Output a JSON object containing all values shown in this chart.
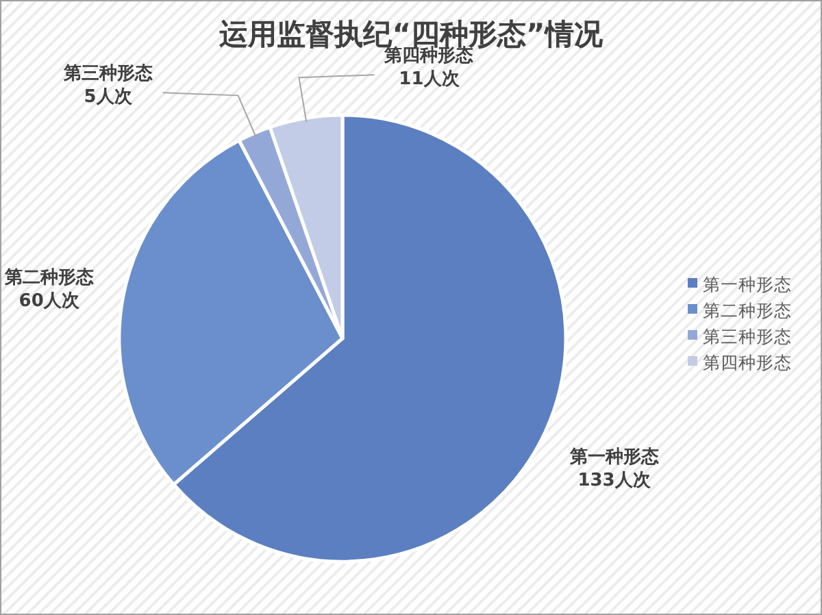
{
  "chart_data": {
    "type": "pie",
    "title": "运用监督执纪“四种形态”情况",
    "categories": [
      "第一种形态",
      "第二种形态",
      "第三种形态",
      "第四种形态"
    ],
    "values": [
      133,
      60,
      5,
      11
    ],
    "value_labels": [
      "133人次",
      "60人次",
      "5人次",
      "11人次"
    ],
    "colors": [
      "#5b7fc0",
      "#6a8fcc",
      "#94a8d8",
      "#c3cce6"
    ],
    "legend": "right"
  }
}
